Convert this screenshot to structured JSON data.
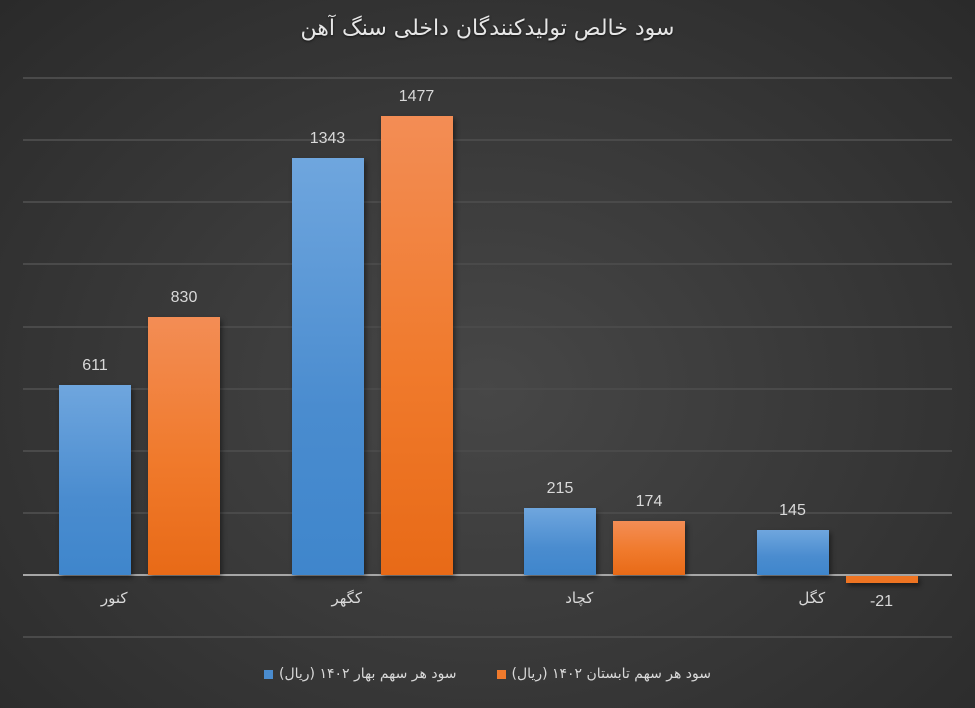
{
  "chart_data": {
    "type": "bar",
    "title": "سود خالص تولیدکنندگان داخلی سنگ آهن",
    "categories": [
      "کنور",
      "کگهر",
      "کچاد",
      "کگل"
    ],
    "series": [
      {
        "name": "سود هر سهم بهار ۱۴۰۲ (ریال)",
        "color": "#4a8ccf",
        "values": [
          611,
          1343,
          215,
          145
        ]
      },
      {
        "name": "سود هر سهم تابستان ۱۴۰۲ (ریال)",
        "color": "#f07a2c",
        "values": [
          830,
          1477,
          174,
          -21
        ]
      }
    ],
    "xlabel": "",
    "ylabel": "",
    "ylim": [
      -200,
      1600
    ],
    "grid": true,
    "legend_position": "bottom",
    "data_labels": true
  },
  "labels": {
    "values_blue": [
      "611",
      "1343",
      "215",
      "145"
    ],
    "values_orange": [
      "830",
      "1477",
      "174",
      "-21"
    ]
  }
}
